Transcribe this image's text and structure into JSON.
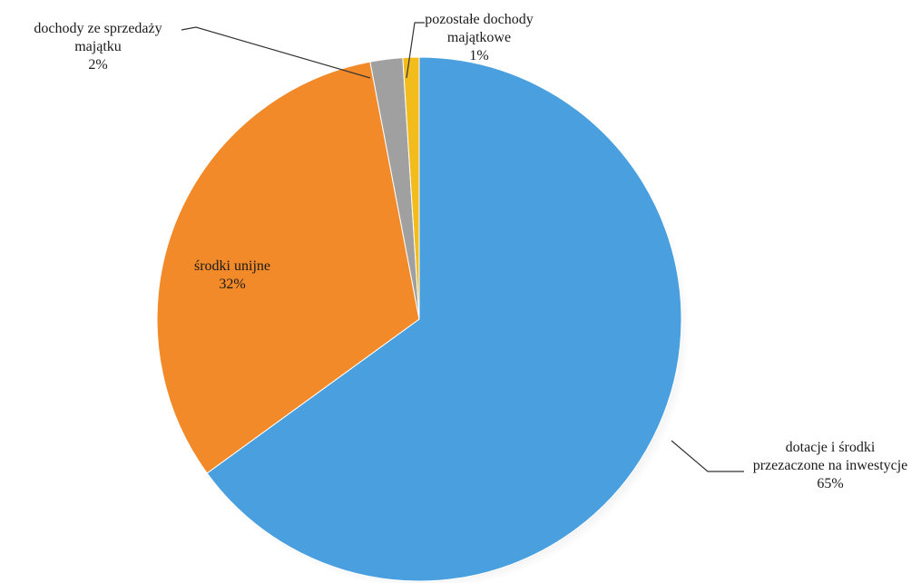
{
  "chart_data": {
    "type": "pie",
    "title": "",
    "start": "top",
    "direction": "clockwise",
    "slices": [
      {
        "label_lines": [
          "dotacje i środki",
          "przezaczone na inwestycje"
        ],
        "value": 65,
        "value_label": "65%",
        "color": "#4a9fdf"
      },
      {
        "label_lines": [
          "środki unijne"
        ],
        "value": 32,
        "value_label": "32%",
        "color": "#f28a2a"
      },
      {
        "label_lines": [
          "dochody ze sprzedaży",
          "majątku"
        ],
        "value": 2,
        "value_label": "2%",
        "color": "#a0a0a0"
      },
      {
        "label_lines": [
          "pozostałe dochody",
          "majątkowe"
        ],
        "value": 1,
        "value_label": "1%",
        "color": "#f2bc1c"
      }
    ]
  }
}
